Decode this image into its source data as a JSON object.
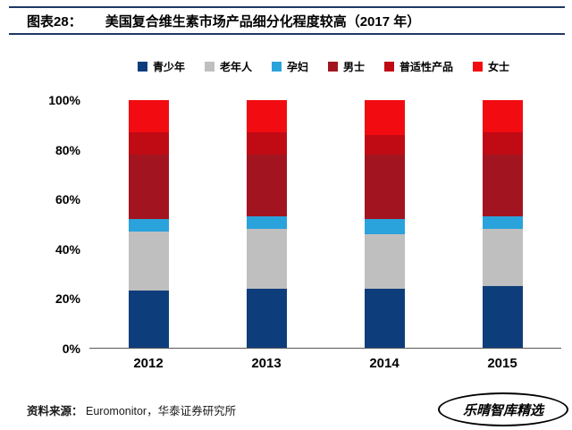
{
  "header": {
    "label": "图表28：",
    "title": "美国复合维生素市场产品细分化程度较高（2017 年）"
  },
  "chart_data": {
    "type": "bar",
    "stacked": true,
    "title": "美国复合维生素市场产品细分化程度较高（2017 年）",
    "categories": [
      "2012",
      "2013",
      "2014",
      "2015"
    ],
    "series": [
      {
        "name": "青少年",
        "color": "#0e3d7b",
        "values": [
          23,
          24,
          24,
          25
        ]
      },
      {
        "name": "老年人",
        "color": "#bfbfbf",
        "values": [
          24,
          24,
          22,
          23
        ]
      },
      {
        "name": "孕妇",
        "color": "#2aa2dc",
        "values": [
          5,
          5,
          6,
          5
        ]
      },
      {
        "name": "男士",
        "color": "#a21520",
        "values": [
          26,
          25,
          26,
          25
        ]
      },
      {
        "name": "普适性产品",
        "color": "#c00b15",
        "values": [
          9,
          9,
          8,
          9
        ]
      },
      {
        "name": "女士",
        "color": "#f20c12",
        "values": [
          13,
          13,
          14,
          13
        ]
      }
    ],
    "xlabel": "",
    "ylabel": "",
    "ylim": [
      0,
      100
    ],
    "yticks": [
      "100%",
      "80%",
      "60%",
      "40%",
      "20%",
      "0%"
    ],
    "grid": false,
    "legend_position": "top"
  },
  "footer": {
    "source_label": "资料来源：",
    "source_text": "Euromonitor，华泰证券研究所",
    "watermark": "乐晴智库精选"
  }
}
